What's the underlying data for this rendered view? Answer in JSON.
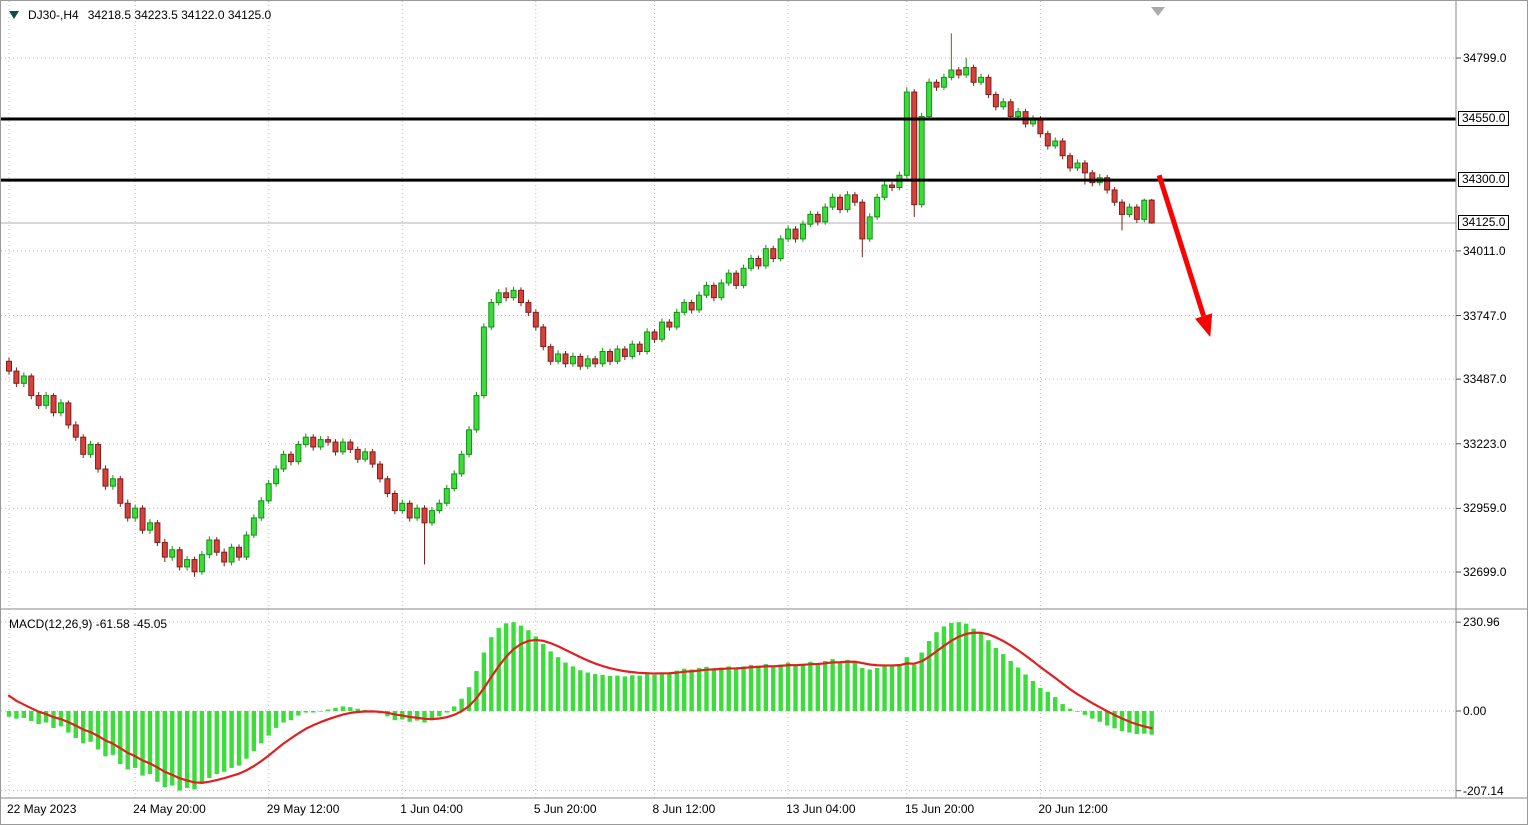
{
  "header": {
    "symbol_period": "DJ30-,H4",
    "ohlc_text": "34218.5 34223.5 34122.0 34125.0"
  },
  "macd_header": "MACD(12,26,9) -61.58 -45.05",
  "colors": {
    "background": "#ffffff",
    "grid": "#bdbdbd",
    "bull": "#3ddc3d",
    "bull_edge": "#149114",
    "bear": "#d6413c",
    "bear_edge": "#7e1f1c",
    "macd_bar": "#3ddc3d",
    "signal_line": "#e02020",
    "level_line": "#000000",
    "arrow": "#ff0000",
    "current_price_line": "#b0b0b0",
    "separator": "#8a8a8a"
  },
  "chart_data": {
    "type": "candlestick",
    "symbol": "DJ30-",
    "timeframe": "H4",
    "current_bar": {
      "open": 34218.5,
      "high": 34223.5,
      "low": 34122.0,
      "close": 34125.0
    },
    "price_axis_ticks": [
      {
        "price": 34799.0,
        "text": "34799.0"
      },
      {
        "price": 34011.0,
        "text": "34011.0"
      },
      {
        "price": 33747.0,
        "text": "33747.0"
      },
      {
        "price": 33487.0,
        "text": "33487.0"
      },
      {
        "price": 33223.0,
        "text": "33223.0"
      },
      {
        "price": 32959.0,
        "text": "32959.0"
      },
      {
        "price": 32699.0,
        "text": "32699.0"
      }
    ],
    "boxed_price_labels": [
      {
        "price": 34550.0,
        "text": "34550.0"
      },
      {
        "price": 34300.0,
        "text": "34300.0"
      },
      {
        "price": 34125.0,
        "text": "34125.0"
      }
    ],
    "levels": [
      {
        "price": 34550.0,
        "label": "34550.0"
      },
      {
        "price": 34300.0,
        "label": "34300.0"
      }
    ],
    "current_price": {
      "price": 34125.0,
      "label": "34125.0"
    },
    "arrow": {
      "from_index": 155,
      "from_price": 34320,
      "to_index": 161,
      "to_price": 33745
    },
    "time_ticks": [
      {
        "index": 0,
        "label": "22 May 2023"
      },
      {
        "index": 17,
        "label": "24 May 20:00"
      },
      {
        "index": 35,
        "label": "29 May 12:00"
      },
      {
        "index": 53,
        "label": "1 Jun 04:00"
      },
      {
        "index": 71,
        "label": "5 Jun 20:00"
      },
      {
        "index": 87,
        "label": "8 Jun 12:00"
      },
      {
        "index": 105,
        "label": "13 Jun 04:00"
      },
      {
        "index": 121,
        "label": "15 Jun 20:00"
      },
      {
        "index": 139,
        "label": "20 Jun 12:00"
      }
    ],
    "candles": [
      [
        33560,
        33575,
        33505,
        33520
      ],
      [
        33520,
        33535,
        33455,
        33470
      ],
      [
        33470,
        33515,
        33455,
        33500
      ],
      [
        33500,
        33510,
        33405,
        33420
      ],
      [
        33420,
        33435,
        33365,
        33380
      ],
      [
        33380,
        33435,
        33365,
        33420
      ],
      [
        33420,
        33430,
        33335,
        33350
      ],
      [
        33350,
        33405,
        33335,
        33390
      ],
      [
        33390,
        33400,
        33285,
        33300
      ],
      [
        33300,
        33315,
        33235,
        33250
      ],
      [
        33250,
        33262,
        33165,
        33180
      ],
      [
        33180,
        33235,
        33165,
        33220
      ],
      [
        33220,
        33230,
        33105,
        33120
      ],
      [
        33120,
        33135,
        33035,
        33050
      ],
      [
        33050,
        33095,
        33035,
        33080
      ],
      [
        33080,
        33092,
        32965,
        32980
      ],
      [
        32980,
        32995,
        32905,
        32920
      ],
      [
        32920,
        32975,
        32905,
        32960
      ],
      [
        32960,
        32972,
        32855,
        32870
      ],
      [
        32870,
        32915,
        32855,
        32900
      ],
      [
        32900,
        32912,
        32805,
        32820
      ],
      [
        32820,
        32835,
        32740,
        32760
      ],
      [
        32760,
        32805,
        32745,
        32790
      ],
      [
        32790,
        32802,
        32705,
        32720
      ],
      [
        32720,
        32765,
        32705,
        32750
      ],
      [
        32750,
        32762,
        32680,
        32700
      ],
      [
        32700,
        32785,
        32688,
        32770
      ],
      [
        32770,
        32845,
        32755,
        32830
      ],
      [
        32830,
        32842,
        32765,
        32780
      ],
      [
        32780,
        32795,
        32722,
        32740
      ],
      [
        32740,
        32815,
        32726,
        32800
      ],
      [
        32800,
        32812,
        32745,
        32760
      ],
      [
        32760,
        32865,
        32748,
        32850
      ],
      [
        32850,
        32935,
        32838,
        32920
      ],
      [
        32920,
        33005,
        32908,
        32990
      ],
      [
        32990,
        33075,
        32978,
        33060
      ],
      [
        33060,
        33135,
        33048,
        33120
      ],
      [
        33120,
        33195,
        33108,
        33180
      ],
      [
        33180,
        33192,
        33135,
        33150
      ],
      [
        33150,
        33235,
        33138,
        33220
      ],
      [
        33220,
        33265,
        33208,
        33250
      ],
      [
        33250,
        33262,
        33195,
        33210
      ],
      [
        33210,
        33255,
        33198,
        33240
      ],
      [
        33240,
        33255,
        33215,
        33230
      ],
      [
        33230,
        33242,
        33175,
        33190
      ],
      [
        33190,
        33245,
        33178,
        33230
      ],
      [
        33230,
        33242,
        33185,
        33200
      ],
      [
        33200,
        33212,
        33145,
        33160
      ],
      [
        33160,
        33205,
        33148,
        33190
      ],
      [
        33190,
        33202,
        33125,
        33140
      ],
      [
        33140,
        33152,
        33065,
        33080
      ],
      [
        33080,
        33092,
        33005,
        33020
      ],
      [
        33020,
        33032,
        32935,
        32950
      ],
      [
        32950,
        32995,
        32938,
        32980
      ],
      [
        32980,
        32992,
        32905,
        32920
      ],
      [
        32920,
        32975,
        32908,
        32960
      ],
      [
        32960,
        32972,
        32730,
        32900
      ],
      [
        32900,
        32965,
        32888,
        32950
      ],
      [
        32950,
        32995,
        32938,
        32980
      ],
      [
        32980,
        33055,
        32968,
        33040
      ],
      [
        33040,
        33115,
        33028,
        33100
      ],
      [
        33100,
        33195,
        33088,
        33180
      ],
      [
        33180,
        33295,
        33168,
        33280
      ],
      [
        33280,
        33435,
        33268,
        33420
      ],
      [
        33420,
        33715,
        33408,
        33700
      ],
      [
        33700,
        33815,
        33688,
        33800
      ],
      [
        33800,
        33855,
        33788,
        33840
      ],
      [
        33840,
        33862,
        33805,
        33820
      ],
      [
        33820,
        33865,
        33808,
        33850
      ],
      [
        33850,
        33862,
        33785,
        33800
      ],
      [
        33800,
        33812,
        33745,
        33760
      ],
      [
        33760,
        33772,
        33685,
        33700
      ],
      [
        33700,
        33712,
        33605,
        33620
      ],
      [
        33620,
        33632,
        33545,
        33560
      ],
      [
        33560,
        33605,
        33548,
        33590
      ],
      [
        33590,
        33602,
        33535,
        33550
      ],
      [
        33550,
        33595,
        33538,
        33580
      ],
      [
        33580,
        33592,
        33525,
        33540
      ],
      [
        33540,
        33585,
        33528,
        33570
      ],
      [
        33570,
        33582,
        33535,
        33550
      ],
      [
        33550,
        33615,
        33538,
        33600
      ],
      [
        33600,
        33612,
        33545,
        33560
      ],
      [
        33560,
        33625,
        33548,
        33610
      ],
      [
        33610,
        33622,
        33565,
        33580
      ],
      [
        33580,
        33645,
        33568,
        33630
      ],
      [
        33630,
        33642,
        33585,
        33600
      ],
      [
        33600,
        33695,
        33588,
        33680
      ],
      [
        33680,
        33692,
        33635,
        33650
      ],
      [
        33650,
        33735,
        33638,
        33720
      ],
      [
        33720,
        33732,
        33685,
        33700
      ],
      [
        33700,
        33775,
        33688,
        33760
      ],
      [
        33760,
        33815,
        33748,
        33800
      ],
      [
        33800,
        33812,
        33755,
        33770
      ],
      [
        33770,
        33845,
        33758,
        33830
      ],
      [
        33830,
        33885,
        33818,
        33870
      ],
      [
        33870,
        33882,
        33805,
        33820
      ],
      [
        33820,
        33895,
        33808,
        33880
      ],
      [
        33880,
        33935,
        33868,
        33920
      ],
      [
        33920,
        33932,
        33855,
        33870
      ],
      [
        33870,
        33955,
        33858,
        33940
      ],
      [
        33940,
        33995,
        33928,
        33980
      ],
      [
        33980,
        33992,
        33935,
        33950
      ],
      [
        33950,
        34035,
        33938,
        34020
      ],
      [
        34020,
        34032,
        33965,
        33980
      ],
      [
        33980,
        34075,
        33968,
        34060
      ],
      [
        34060,
        34115,
        34048,
        34100
      ],
      [
        34100,
        34112,
        34045,
        34060
      ],
      [
        34060,
        34135,
        34048,
        34120
      ],
      [
        34120,
        34175,
        34108,
        34160
      ],
      [
        34160,
        34172,
        34115,
        34130
      ],
      [
        34130,
        34205,
        34118,
        34190
      ],
      [
        34190,
        34245,
        34178,
        34230
      ],
      [
        34230,
        34242,
        34165,
        34180
      ],
      [
        34180,
        34255,
        34168,
        34240
      ],
      [
        34240,
        34252,
        34195,
        34210
      ],
      [
        34210,
        34222,
        33985,
        34060
      ],
      [
        34060,
        34165,
        34048,
        34150
      ],
      [
        34150,
        34245,
        34138,
        34230
      ],
      [
        34230,
        34295,
        34218,
        34280
      ],
      [
        34280,
        34292,
        34255,
        34270
      ],
      [
        34270,
        34335,
        34258,
        34320
      ],
      [
        34320,
        34680,
        34308,
        34660
      ],
      [
        34660,
        34672,
        34150,
        34200
      ],
      [
        34200,
        34575,
        34188,
        34560
      ],
      [
        34560,
        34715,
        34548,
        34700
      ],
      [
        34700,
        34712,
        34665,
        34680
      ],
      [
        34680,
        34735,
        34668,
        34720
      ],
      [
        34720,
        34900,
        34708,
        34750
      ],
      [
        34750,
        34762,
        34715,
        34730
      ],
      [
        34730,
        34800,
        34718,
        34760
      ],
      [
        34760,
        34772,
        34685,
        34700
      ],
      [
        34700,
        34735,
        34688,
        34720
      ],
      [
        34720,
        34732,
        34635,
        34650
      ],
      [
        34650,
        34662,
        34585,
        34600
      ],
      [
        34600,
        34635,
        34588,
        34620
      ],
      [
        34620,
        34632,
        34545,
        34560
      ],
      [
        34560,
        34595,
        34548,
        34580
      ],
      [
        34580,
        34592,
        34515,
        34530
      ],
      [
        34530,
        34565,
        34518,
        34550
      ],
      [
        34550,
        34562,
        34475,
        34490
      ],
      [
        34490,
        34502,
        34425,
        34440
      ],
      [
        34440,
        34475,
        34428,
        34460
      ],
      [
        34460,
        34472,
        34385,
        34400
      ],
      [
        34400,
        34412,
        34335,
        34350
      ],
      [
        34350,
        34385,
        34338,
        34370
      ],
      [
        34370,
        34382,
        34282,
        34330
      ],
      [
        34330,
        34342,
        34275,
        34290
      ],
      [
        34290,
        34325,
        34278,
        34310
      ],
      [
        34310,
        34322,
        34245,
        34260
      ],
      [
        34260,
        34272,
        34195,
        34210
      ],
      [
        34210,
        34222,
        34095,
        34160
      ],
      [
        34160,
        34205,
        34148,
        34190
      ],
      [
        34190,
        34202,
        34125,
        34140
      ],
      [
        34140,
        34225,
        34128,
        34218
      ],
      [
        34218.5,
        34223.5,
        34122,
        34125
      ]
    ],
    "macd": {
      "params": [
        12,
        26,
        9
      ],
      "macd_value": -61.58,
      "signal_value": -45.05,
      "axis_labels": [
        {
          "value": 230.96,
          "text": "230.96"
        },
        {
          "value": 0,
          "text": "0.00"
        },
        {
          "value": -207.14,
          "text": "-207.14"
        }
      ],
      "histogram": [
        -15,
        -20,
        -18,
        -26,
        -34,
        -30,
        -44,
        -40,
        -56,
        -70,
        -84,
        -80,
        -100,
        -118,
        -114,
        -138,
        -152,
        -148,
        -168,
        -164,
        -184,
        -198,
        -194,
        -207,
        -200,
        -204,
        -190,
        -174,
        -164,
        -158,
        -148,
        -142,
        -124,
        -104,
        -84,
        -64,
        -44,
        -30,
        -24,
        -12,
        -4,
        -4,
        0,
        4,
        8,
        12,
        10,
        6,
        3,
        0,
        -6,
        -14,
        -24,
        -22,
        -28,
        -25,
        -30,
        -24,
        -14,
        -4,
        12,
        32,
        62,
        104,
        152,
        192,
        216,
        228,
        231,
        222,
        210,
        194,
        174,
        155,
        140,
        126,
        116,
        106,
        100,
        96,
        94,
        91,
        92,
        90,
        93,
        92,
        96,
        94,
        100,
        99,
        105,
        110,
        108,
        112,
        115,
        111,
        113,
        116,
        111,
        116,
        120,
        118,
        122,
        116,
        121,
        126,
        119,
        123,
        128,
        124,
        130,
        135,
        128,
        133,
        128,
        112,
        108,
        112,
        117,
        118,
        122,
        140,
        120,
        152,
        182,
        205,
        220,
        229,
        231,
        227,
        214,
        204,
        184,
        164,
        148,
        130,
        113,
        95,
        78,
        60,
        50,
        36,
        18,
        6,
        -2,
        -10,
        -20,
        -28,
        -38,
        -45,
        -52,
        -56,
        -60,
        -59,
        -61.58
      ]
    }
  }
}
